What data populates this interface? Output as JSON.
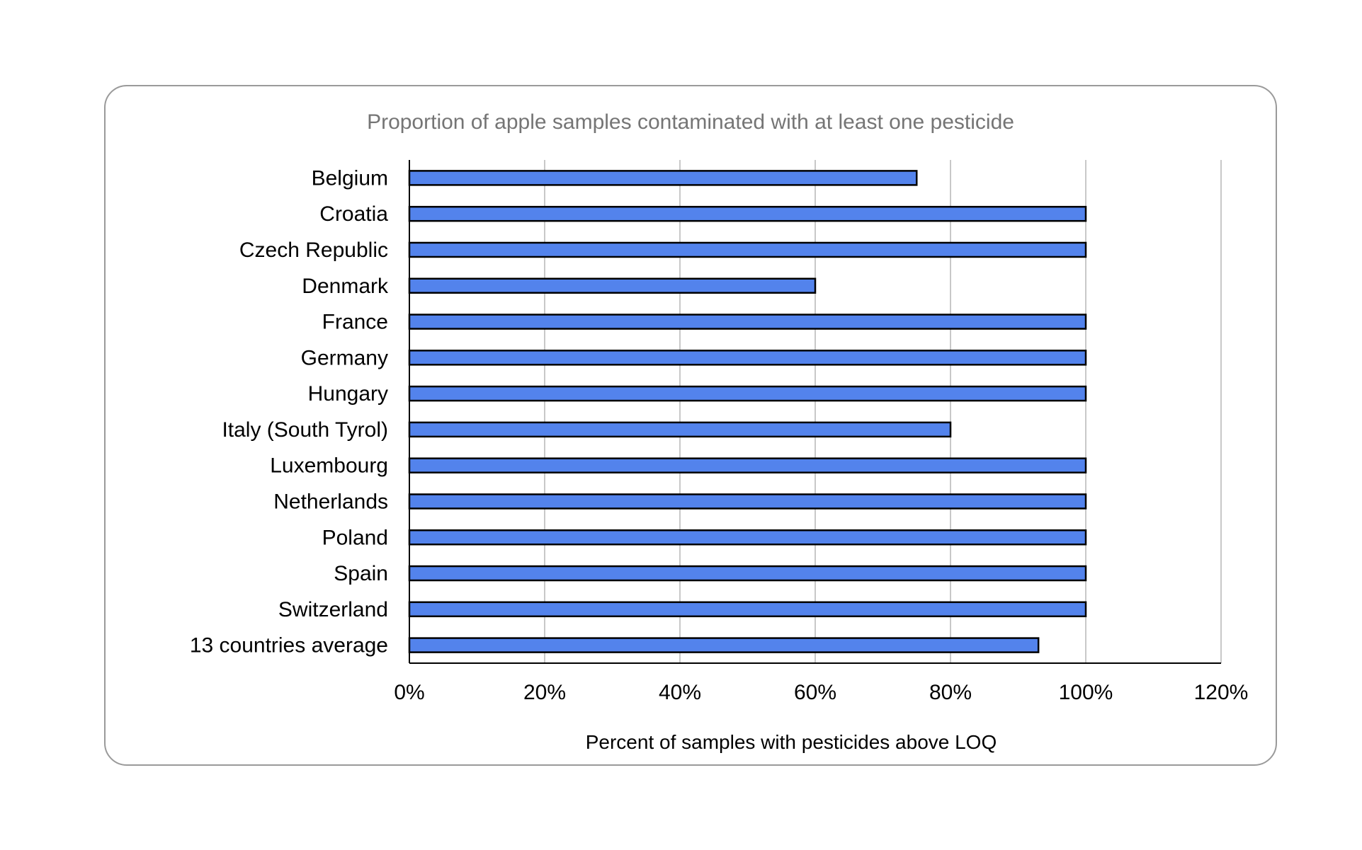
{
  "chart_data": {
    "type": "bar",
    "orientation": "horizontal",
    "title": "Proportion of apple samples contaminated with at least one pesticide",
    "xlabel": "Percent of samples with pesticides above LOQ",
    "ylabel": "",
    "categories": [
      "Belgium",
      "Croatia",
      "Czech Republic",
      "Denmark",
      "France",
      "Germany",
      "Hungary",
      "Italy (South Tyrol)",
      "Luxembourg",
      "Netherlands",
      "Poland",
      "Spain",
      "Switzerland",
      "13 countries average"
    ],
    "values": [
      75,
      100,
      100,
      60,
      100,
      100,
      100,
      80,
      100,
      100,
      100,
      100,
      100,
      93
    ],
    "value_unit": "percent",
    "xlim": [
      0,
      120
    ],
    "xticks": [
      0,
      20,
      40,
      60,
      80,
      100,
      120
    ],
    "xtick_labels": [
      "0%",
      "20%",
      "40%",
      "60%",
      "80%",
      "100%",
      "120%"
    ],
    "grid": "vertical",
    "legend": "none",
    "colors": {
      "bar_fill": "#5383EC",
      "bar_stroke": "#000000",
      "grid": "#c8c8c8",
      "title": "#757575",
      "frame": "#9a9a9a"
    }
  }
}
